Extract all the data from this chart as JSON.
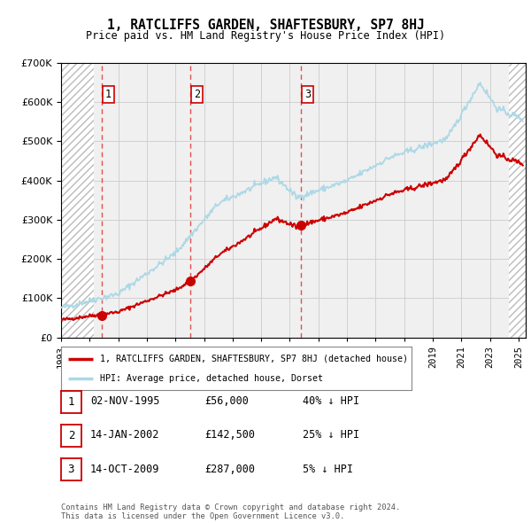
{
  "title": "1, RATCLIFFS GARDEN, SHAFTESBURY, SP7 8HJ",
  "subtitle": "Price paid vs. HM Land Registry's House Price Index (HPI)",
  "sales": [
    {
      "date_num": 1995.84,
      "price": 56000,
      "label": "1"
    },
    {
      "date_num": 2002.04,
      "price": 142500,
      "label": "2"
    },
    {
      "date_num": 2009.79,
      "price": 287000,
      "label": "3"
    }
  ],
  "sale_dates_str": [
    "02-NOV-1995",
    "14-JAN-2002",
    "14-OCT-2009"
  ],
  "sale_prices_str": [
    "£56,000",
    "£142,500",
    "£287,000"
  ],
  "sale_hpi_str": [
    "40% ↓ HPI",
    "25% ↓ HPI",
    "5% ↓ HPI"
  ],
  "hpi_color": "#add8e6",
  "sale_color": "#cc0000",
  "dashed_line_color": "#e05050",
  "legend_sale_label": "1, RATCLIFFS GARDEN, SHAFTESBURY, SP7 8HJ (detached house)",
  "legend_hpi_label": "HPI: Average price, detached house, Dorset",
  "footer": "Contains HM Land Registry data © Crown copyright and database right 2024.\nThis data is licensed under the Open Government Licence v3.0.",
  "ylim": [
    0,
    700000
  ],
  "yticks": [
    0,
    100000,
    200000,
    300000,
    400000,
    500000,
    600000,
    700000
  ],
  "xlim_start": 1993.0,
  "xlim_end": 2025.5,
  "plot_bg_color": "#f0f0f0"
}
